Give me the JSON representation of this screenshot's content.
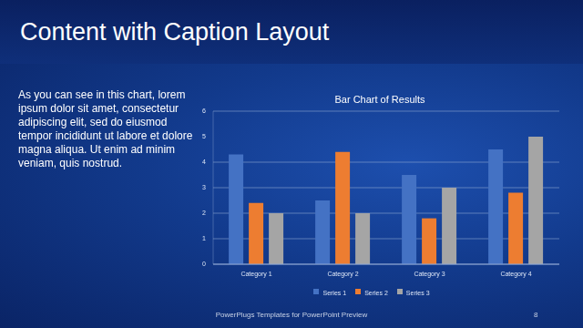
{
  "slide": {
    "title": "Content with Caption Layout",
    "caption": "As you can see in this chart, lorem ipsum dolor sit amet, consectetur adipiscing elit, sed do eiusmod tempor incididunt ut labore et dolore magna aliqua. Ut enim ad minim veniam, quis nostrud.",
    "footer": "PowerPlugs Templates for PowerPoint Preview",
    "page": "8"
  },
  "chart_data": {
    "type": "bar",
    "title": "Bar Chart of Results",
    "categories": [
      "Category 1",
      "Category 2",
      "Category 3",
      "Category 4"
    ],
    "series": [
      {
        "name": "Series 1",
        "color": "#4472c4",
        "values": [
          4.3,
          2.5,
          3.5,
          4.5
        ]
      },
      {
        "name": "Series 2",
        "color": "#ed7d31",
        "values": [
          2.4,
          4.4,
          1.8,
          2.8
        ]
      },
      {
        "name": "Series 3",
        "color": "#a5a5a5",
        "values": [
          2,
          2,
          3,
          5
        ]
      }
    ],
    "ylim": [
      0,
      6
    ],
    "yticks": [
      0,
      1,
      2,
      3,
      4,
      5,
      6
    ],
    "grid": true,
    "legend": "bottom"
  }
}
